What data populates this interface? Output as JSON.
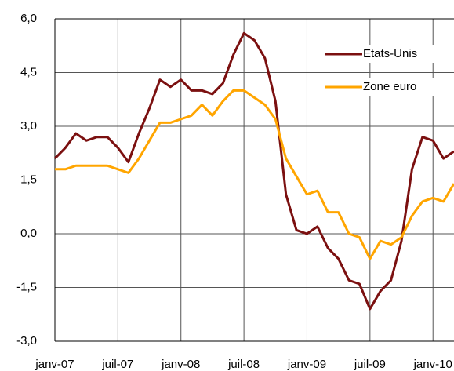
{
  "chart_data": {
    "type": "line",
    "categories": [
      "janv-07",
      null,
      null,
      null,
      null,
      null,
      "juil-07",
      null,
      null,
      null,
      null,
      null,
      "janv-08",
      null,
      null,
      null,
      null,
      null,
      "juil-08",
      null,
      null,
      null,
      null,
      null,
      "janv-09",
      null,
      null,
      null,
      null,
      null,
      "juil-09",
      null,
      null,
      null,
      null,
      null,
      "janv-10",
      null,
      null
    ],
    "series": [
      {
        "name": "Etats-Unis",
        "color": "#7b1010",
        "values": [
          2.1,
          2.4,
          2.8,
          2.6,
          2.7,
          2.7,
          2.4,
          2.0,
          2.8,
          3.5,
          4.3,
          4.1,
          4.3,
          4.0,
          4.0,
          3.9,
          4.2,
          5.0,
          5.6,
          5.4,
          4.9,
          3.7,
          1.1,
          0.1,
          0.0,
          0.2,
          -0.4,
          -0.7,
          -1.3,
          -1.4,
          -2.1,
          -1.6,
          -1.3,
          -0.2,
          1.8,
          2.7,
          2.6,
          2.1,
          2.3
        ]
      },
      {
        "name": "Zone euro",
        "color": "#ffa500",
        "values": [
          1.8,
          1.8,
          1.9,
          1.9,
          1.9,
          1.9,
          1.8,
          1.7,
          2.1,
          2.6,
          3.1,
          3.1,
          3.2,
          3.3,
          3.6,
          3.3,
          3.7,
          4.0,
          4.0,
          3.8,
          3.6,
          3.2,
          2.1,
          1.6,
          1.1,
          1.2,
          0.6,
          0.6,
          0.0,
          -0.1,
          -0.7,
          -0.2,
          -0.3,
          -0.1,
          0.5,
          0.9,
          1.0,
          0.9,
          1.4
        ]
      }
    ],
    "ylim": [
      -3,
      6
    ],
    "yticks": [
      {
        "value": -3,
        "label": "-3,0"
      },
      {
        "value": -1.5,
        "label": "-1,5"
      },
      {
        "value": 0,
        "label": "0,0"
      },
      {
        "value": 1.5,
        "label": "1,5"
      },
      {
        "value": 3,
        "label": "3,0"
      },
      {
        "value": 4.5,
        "label": "4,5"
      },
      {
        "value": 6,
        "label": "6,0"
      }
    ],
    "grid": true,
    "legend": "top-right"
  }
}
